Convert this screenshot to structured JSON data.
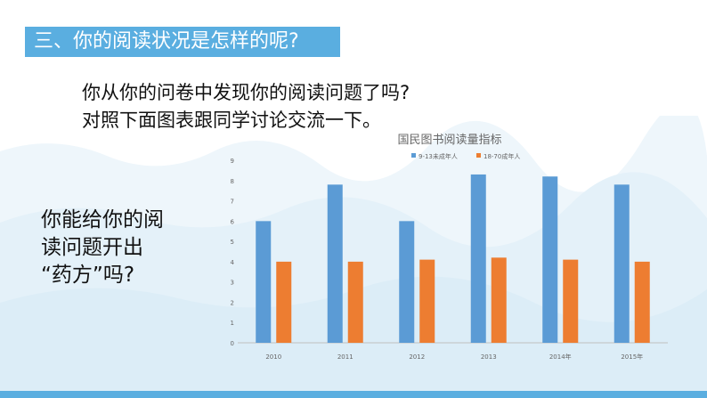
{
  "slide": {
    "title": "三、你的阅读状况是怎样的呢?",
    "question_lines": [
      "你从你的问卷中发现你的阅读问题了吗?",
      "对照下面图表跟同学讨论交流一下。"
    ],
    "side_lines": [
      "你能给你的阅",
      "读问题开出",
      "“药方”吗?"
    ],
    "accent_color": "#5aaee0"
  },
  "chart_data": {
    "type": "bar",
    "title": "国民图书阅读量指标",
    "categories": [
      "2010",
      "2011",
      "2012",
      "2013",
      "2014年",
      "2015年"
    ],
    "series": [
      {
        "name": "9-13未成年人",
        "values": [
          6.0,
          7.8,
          6.0,
          8.3,
          8.2,
          7.8
        ],
        "color": "#5b9bd5"
      },
      {
        "name": "18-70成年人",
        "values": [
          4.0,
          4.0,
          4.1,
          4.2,
          4.1,
          4.0
        ],
        "color": "#ed7d31"
      }
    ],
    "ylim": [
      0,
      9
    ],
    "yticks": [
      "0",
      "1",
      "2",
      "3",
      "4",
      "5",
      "6",
      "7",
      "8",
      "9"
    ],
    "grid": false,
    "legend": "top"
  }
}
